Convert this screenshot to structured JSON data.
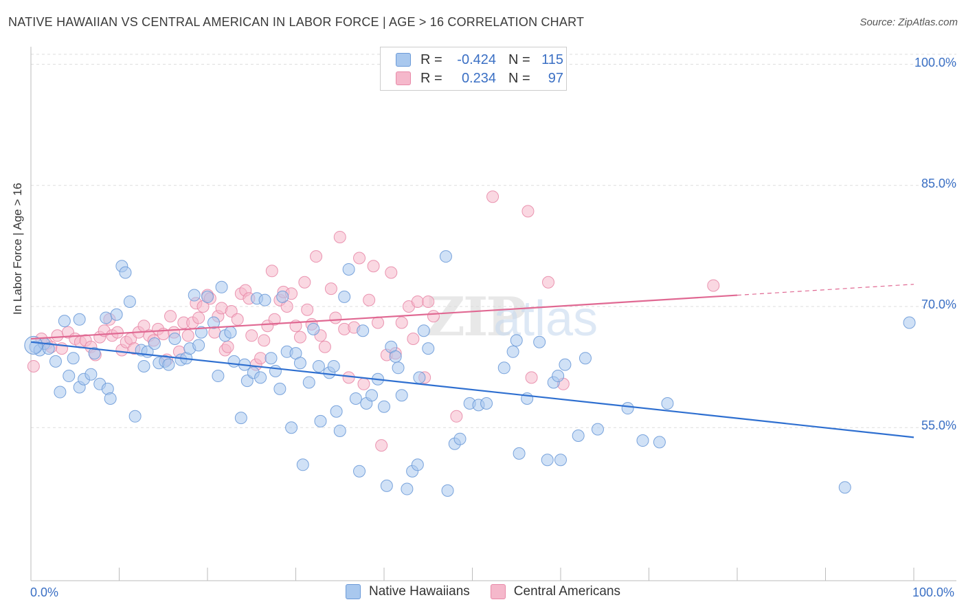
{
  "title": "NATIVE HAWAIIAN VS CENTRAL AMERICAN IN LABOR FORCE | AGE > 16 CORRELATION CHART",
  "source": "Source: ZipAtlas.com",
  "watermark": "ZIPatlas",
  "legend_top": {
    "r_label": "R =",
    "n_label": "N =",
    "series": [
      {
        "r": "-0.424",
        "n": "115"
      },
      {
        "r": "0.234",
        "n": "97"
      }
    ]
  },
  "chart_data": {
    "type": "scatter",
    "ylabel": "In Labor Force | Age > 16",
    "x_ticks": [
      "0.0%",
      "100.0%"
    ],
    "y_ticks": [
      "100.0%",
      "85.0%",
      "70.0%",
      "55.0%"
    ],
    "y_tick_values": [
      100,
      85,
      70,
      55
    ],
    "xlim": [
      0,
      100
    ],
    "ylim": [
      38,
      102
    ],
    "grid": true,
    "legend_position": "bottom",
    "colors": {
      "blue_fill": "#a9c8ee",
      "blue_stroke": "#6b9ad8",
      "blue_line": "#2e6fd0",
      "pink_fill": "#f5b8cb",
      "pink_stroke": "#e889a8",
      "pink_line": "#e06892"
    },
    "series": [
      {
        "name": "Native Hawaiians",
        "color": "#a9c8ee",
        "trend": {
          "x0": 0,
          "y0": 65.6,
          "x1": 100,
          "y1": 53.8
        },
        "points": [
          [
            0.5,
            65.0
          ],
          [
            1.0,
            64.6
          ],
          [
            1.5,
            65.4
          ],
          [
            2.0,
            64.8
          ],
          [
            2.8,
            63.2
          ],
          [
            3.3,
            59.4
          ],
          [
            3.8,
            68.2
          ],
          [
            4.3,
            61.4
          ],
          [
            4.8,
            63.6
          ],
          [
            5.5,
            68.4
          ],
          [
            5.5,
            60.0
          ],
          [
            6.0,
            61.0
          ],
          [
            6.8,
            61.6
          ],
          [
            7.2,
            64.2
          ],
          [
            7.8,
            60.4
          ],
          [
            8.5,
            68.6
          ],
          [
            8.7,
            59.8
          ],
          [
            9.0,
            58.6
          ],
          [
            9.7,
            69.0
          ],
          [
            10.3,
            75.0
          ],
          [
            10.7,
            74.2
          ],
          [
            11.2,
            70.6
          ],
          [
            11.8,
            56.4
          ],
          [
            12.5,
            64.6
          ],
          [
            12.8,
            62.6
          ],
          [
            13.2,
            64.4
          ],
          [
            14.0,
            65.4
          ],
          [
            14.5,
            63.0
          ],
          [
            15.2,
            63.2
          ],
          [
            15.6,
            62.8
          ],
          [
            16.3,
            66.0
          ],
          [
            17.0,
            63.4
          ],
          [
            17.6,
            63.6
          ],
          [
            18.0,
            64.8
          ],
          [
            18.5,
            71.4
          ],
          [
            19.0,
            65.2
          ],
          [
            19.3,
            66.8
          ],
          [
            20.0,
            71.2
          ],
          [
            20.7,
            68.0
          ],
          [
            21.2,
            61.4
          ],
          [
            21.6,
            72.4
          ],
          [
            22.0,
            66.4
          ],
          [
            22.6,
            66.8
          ],
          [
            23.0,
            63.2
          ],
          [
            23.8,
            56.2
          ],
          [
            24.2,
            62.8
          ],
          [
            24.5,
            60.8
          ],
          [
            25.2,
            61.8
          ],
          [
            25.6,
            71.0
          ],
          [
            26.0,
            61.2
          ],
          [
            26.5,
            70.8
          ],
          [
            27.2,
            63.6
          ],
          [
            27.7,
            62.0
          ],
          [
            28.2,
            59.8
          ],
          [
            28.5,
            71.2
          ],
          [
            29.0,
            64.4
          ],
          [
            29.5,
            55.0
          ],
          [
            30.0,
            64.2
          ],
          [
            30.5,
            63.0
          ],
          [
            30.8,
            50.4
          ],
          [
            31.5,
            60.6
          ],
          [
            32.0,
            67.2
          ],
          [
            32.6,
            62.6
          ],
          [
            32.8,
            55.8
          ],
          [
            33.8,
            61.8
          ],
          [
            34.3,
            62.6
          ],
          [
            34.6,
            57.0
          ],
          [
            35.0,
            54.6
          ],
          [
            35.5,
            71.2
          ],
          [
            36.0,
            74.6
          ],
          [
            36.8,
            58.6
          ],
          [
            37.2,
            49.6
          ],
          [
            37.6,
            67.0
          ],
          [
            38.0,
            58.0
          ],
          [
            38.6,
            59.0
          ],
          [
            39.3,
            61.0
          ],
          [
            40.0,
            57.6
          ],
          [
            40.3,
            47.8
          ],
          [
            40.8,
            65.0
          ],
          [
            41.3,
            63.8
          ],
          [
            41.6,
            62.4
          ],
          [
            42.0,
            59.0
          ],
          [
            42.6,
            47.4
          ],
          [
            43.2,
            49.6
          ],
          [
            43.8,
            50.4
          ],
          [
            44.0,
            61.2
          ],
          [
            44.5,
            67.0
          ],
          [
            45.0,
            64.8
          ],
          [
            47.0,
            76.2
          ],
          [
            47.2,
            47.2
          ],
          [
            48.0,
            53.0
          ],
          [
            48.6,
            53.6
          ],
          [
            49.7,
            58.0
          ],
          [
            50.7,
            57.8
          ],
          [
            51.6,
            58.0
          ],
          [
            53.6,
            62.4
          ],
          [
            54.6,
            64.4
          ],
          [
            55.0,
            65.8
          ],
          [
            55.3,
            51.8
          ],
          [
            56.2,
            58.6
          ],
          [
            57.6,
            65.6
          ],
          [
            58.5,
            51.0
          ],
          [
            59.2,
            60.6
          ],
          [
            59.7,
            61.4
          ],
          [
            60.0,
            51.0
          ],
          [
            60.5,
            62.8
          ],
          [
            62.0,
            54.0
          ],
          [
            62.8,
            63.6
          ],
          [
            64.2,
            54.8
          ],
          [
            67.6,
            57.4
          ],
          [
            69.3,
            53.4
          ],
          [
            71.2,
            53.2
          ],
          [
            72.1,
            58.0
          ],
          [
            92.2,
            47.6
          ],
          [
            99.5,
            68.0
          ]
        ]
      },
      {
        "name": "Central Americans",
        "color": "#f5b8cb",
        "trend": {
          "x0": 0,
          "y0": 66.0,
          "x1": 80,
          "y1": 71.4
        },
        "points": [
          [
            0.3,
            62.6
          ],
          [
            1.2,
            66.0
          ],
          [
            1.8,
            65.4
          ],
          [
            2.3,
            65.0
          ],
          [
            3.0,
            66.4
          ],
          [
            3.5,
            64.8
          ],
          [
            4.2,
            66.8
          ],
          [
            5.0,
            66.0
          ],
          [
            5.6,
            65.6
          ],
          [
            6.2,
            65.8
          ],
          [
            6.8,
            65.0
          ],
          [
            7.3,
            64.0
          ],
          [
            7.8,
            66.2
          ],
          [
            8.3,
            67.0
          ],
          [
            8.9,
            68.4
          ],
          [
            9.2,
            66.4
          ],
          [
            9.8,
            66.8
          ],
          [
            10.3,
            64.6
          ],
          [
            10.8,
            65.6
          ],
          [
            11.3,
            66.0
          ],
          [
            11.7,
            64.8
          ],
          [
            12.2,
            66.8
          ],
          [
            12.8,
            67.6
          ],
          [
            13.4,
            66.4
          ],
          [
            13.9,
            65.8
          ],
          [
            14.4,
            67.2
          ],
          [
            15.0,
            66.6
          ],
          [
            15.4,
            63.4
          ],
          [
            15.8,
            68.8
          ],
          [
            16.2,
            66.8
          ],
          [
            16.8,
            64.4
          ],
          [
            17.3,
            68.0
          ],
          [
            17.8,
            66.4
          ],
          [
            18.3,
            68.0
          ],
          [
            18.7,
            70.4
          ],
          [
            19.0,
            68.6
          ],
          [
            19.5,
            70.0
          ],
          [
            20.0,
            71.4
          ],
          [
            20.3,
            71.0
          ],
          [
            20.8,
            66.8
          ],
          [
            21.2,
            68.8
          ],
          [
            21.6,
            69.8
          ],
          [
            22.0,
            64.6
          ],
          [
            22.3,
            65.0
          ],
          [
            22.7,
            69.4
          ],
          [
            23.4,
            68.4
          ],
          [
            23.8,
            71.6
          ],
          [
            24.3,
            72.0
          ],
          [
            24.7,
            71.0
          ],
          [
            25.0,
            66.4
          ],
          [
            25.5,
            62.8
          ],
          [
            26.0,
            63.6
          ],
          [
            26.4,
            65.8
          ],
          [
            26.8,
            67.6
          ],
          [
            27.3,
            74.4
          ],
          [
            27.6,
            68.4
          ],
          [
            28.2,
            70.8
          ],
          [
            28.6,
            71.8
          ],
          [
            29.0,
            70.0
          ],
          [
            29.5,
            71.6
          ],
          [
            30.0,
            67.6
          ],
          [
            30.5,
            66.2
          ],
          [
            31.0,
            73.0
          ],
          [
            31.3,
            69.6
          ],
          [
            31.8,
            67.8
          ],
          [
            32.3,
            76.2
          ],
          [
            32.8,
            66.4
          ],
          [
            33.3,
            65.0
          ],
          [
            34.0,
            72.2
          ],
          [
            34.5,
            68.6
          ],
          [
            35.0,
            78.6
          ],
          [
            35.5,
            67.2
          ],
          [
            36.0,
            61.2
          ],
          [
            36.6,
            67.4
          ],
          [
            37.2,
            76.0
          ],
          [
            37.7,
            60.4
          ],
          [
            38.3,
            70.8
          ],
          [
            38.8,
            75.0
          ],
          [
            39.3,
            68.0
          ],
          [
            39.7,
            52.8
          ],
          [
            40.3,
            64.0
          ],
          [
            40.8,
            74.2
          ],
          [
            41.3,
            64.2
          ],
          [
            42.0,
            68.0
          ],
          [
            42.8,
            70.0
          ],
          [
            43.3,
            66.0
          ],
          [
            43.8,
            70.6
          ],
          [
            44.6,
            61.2
          ],
          [
            45.6,
            68.8
          ],
          [
            45.0,
            70.6
          ],
          [
            48.2,
            56.4
          ],
          [
            52.3,
            83.6
          ],
          [
            56.3,
            81.8
          ],
          [
            56.7,
            61.2
          ],
          [
            58.6,
            73.0
          ],
          [
            60.3,
            60.4
          ],
          [
            77.3,
            72.6
          ]
        ]
      }
    ]
  }
}
